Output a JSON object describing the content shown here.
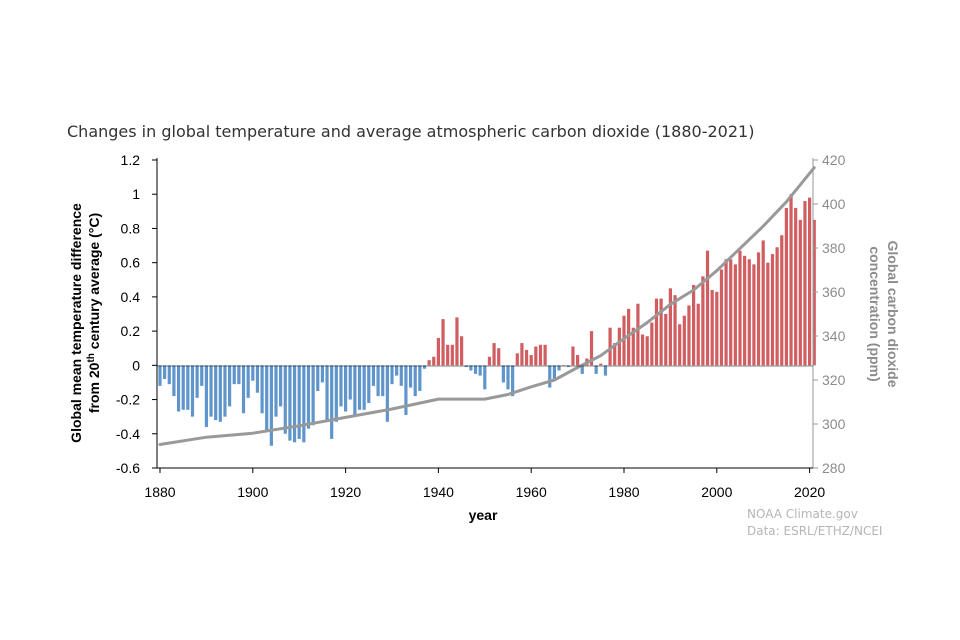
{
  "colors": {
    "warm": "#d05d5f",
    "cool": "#5f95cb",
    "co2": "#999999",
    "axis": "#000000"
  },
  "credits": {
    "line1": "NOAA Climate.gov",
    "line2": "Data: ESRL/ETHZ/NCEI"
  },
  "chart_data": {
    "type": "bar",
    "title": "Changes in global temperature and average atmospheric carbon dioxide (1880-2021)",
    "xlabel": "year",
    "ylabel_line1": "Global mean temperature difference",
    "ylabel_line2_pre": "from 20",
    "ylabel_line2_sup": "th",
    "ylabel_line2_post": " century average (°C)",
    "y2label_line1": "Global carbon dioxide",
    "y2label_line2": "concentration (ppm)",
    "xlim": [
      1880,
      2021
    ],
    "ylim": [
      -0.6,
      1.2
    ],
    "y2lim": [
      280,
      420
    ],
    "xticks": [
      "1880",
      "1900",
      "1920",
      "1940",
      "1960",
      "1980",
      "2000",
      "2020"
    ],
    "yticks": [
      "-0.6",
      "-0.4",
      "-0.2",
      "0",
      "0.2",
      "0.4",
      "0.6",
      "0.8",
      "1",
      "1.2"
    ],
    "y2ticks": [
      "280",
      "300",
      "320",
      "340",
      "360",
      "380",
      "400",
      "420"
    ],
    "grid": false,
    "series": [
      {
        "kind": "bar",
        "x_start": 1880,
        "values": [
          -0.12,
          -0.08,
          -0.11,
          -0.18,
          -0.27,
          -0.26,
          -0.26,
          -0.3,
          -0.19,
          -0.12,
          -0.36,
          -0.3,
          -0.32,
          -0.33,
          -0.3,
          -0.24,
          -0.11,
          -0.11,
          -0.28,
          -0.19,
          -0.09,
          -0.16,
          -0.28,
          -0.38,
          -0.47,
          -0.3,
          -0.24,
          -0.4,
          -0.44,
          -0.45,
          -0.43,
          -0.45,
          -0.37,
          -0.35,
          -0.15,
          -0.1,
          -0.33,
          -0.43,
          -0.33,
          -0.24,
          -0.27,
          -0.2,
          -0.29,
          -0.26,
          -0.26,
          -0.22,
          -0.12,
          -0.18,
          -0.18,
          -0.33,
          -0.11,
          -0.06,
          -0.12,
          -0.29,
          -0.13,
          -0.18,
          -0.15,
          -0.02,
          0.03,
          0.05,
          0.16,
          0.27,
          0.12,
          0.12,
          0.28,
          0.17,
          -0.01,
          -0.03,
          -0.05,
          -0.06,
          -0.14,
          0.05,
          0.13,
          0.1,
          -0.1,
          -0.14,
          -0.18,
          0.07,
          0.13,
          0.09,
          0.06,
          0.11,
          0.12,
          0.12,
          -0.13,
          -0.09,
          -0.03,
          0.0,
          -0.01,
          0.11,
          0.06,
          -0.05,
          0.04,
          0.2,
          -0.05,
          0.01,
          -0.06,
          0.22,
          0.13,
          0.22,
          0.29,
          0.33,
          0.22,
          0.36,
          0.18,
          0.17,
          0.25,
          0.39,
          0.39,
          0.3,
          0.45,
          0.41,
          0.24,
          0.29,
          0.35,
          0.47,
          0.36,
          0.52,
          0.67,
          0.44,
          0.43,
          0.56,
          0.62,
          0.62,
          0.59,
          0.67,
          0.64,
          0.62,
          0.59,
          0.66,
          0.73,
          0.6,
          0.65,
          0.69,
          0.76,
          0.92,
          1.0,
          0.92,
          0.85,
          0.96,
          0.98,
          0.85
        ]
      },
      {
        "kind": "line",
        "points": [
          [
            1880,
            290.7
          ],
          [
            1890,
            294.0
          ],
          [
            1900,
            295.8
          ],
          [
            1910,
            299.2
          ],
          [
            1920,
            303.0
          ],
          [
            1930,
            306.8
          ],
          [
            1940,
            311.3
          ],
          [
            1950,
            311.3
          ],
          [
            1955,
            313.4
          ],
          [
            1960,
            316.9
          ],
          [
            1965,
            320.0
          ],
          [
            1970,
            325.7
          ],
          [
            1975,
            331.1
          ],
          [
            1980,
            338.8
          ],
          [
            1985,
            346.1
          ],
          [
            1990,
            354.4
          ],
          [
            1995,
            360.9
          ],
          [
            2000,
            369.7
          ],
          [
            2005,
            379.8
          ],
          [
            2010,
            389.9
          ],
          [
            2015,
            401.0
          ],
          [
            2021,
            416.5
          ]
        ]
      }
    ]
  }
}
